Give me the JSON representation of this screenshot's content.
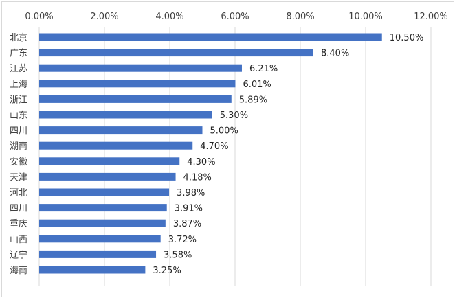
{
  "chart_data": {
    "type": "bar",
    "orientation": "horizontal",
    "title": "",
    "xlabel": "",
    "ylabel": "",
    "xlim": [
      0,
      12
    ],
    "x_ticks": [
      "0.00%",
      "2.00%",
      "4.00%",
      "6.00%",
      "8.00%",
      "10.00%",
      "12.00%"
    ],
    "x_axis_position": "top",
    "grid": true,
    "legend": "none",
    "bar_color": "#4472C4",
    "categories": [
      "北京",
      "广东",
      "江苏",
      "上海",
      "浙江",
      "山东",
      "四川",
      "湖南",
      "安徽",
      "天津",
      "河北",
      "四川",
      "重庆",
      "山西",
      "辽宁",
      "海南"
    ],
    "values": [
      10.5,
      8.4,
      6.21,
      6.01,
      5.89,
      5.3,
      5.0,
      4.7,
      4.3,
      4.18,
      3.98,
      3.91,
      3.87,
      3.72,
      3.58,
      3.25
    ],
    "data_labels": [
      "10.50%",
      "8.40%",
      "6.21%",
      "6.01%",
      "5.89%",
      "5.30%",
      "5.00%",
      "4.70%",
      "4.30%",
      "4.18%",
      "3.98%",
      "3.91%",
      "3.87%",
      "3.72%",
      "3.58%",
      "3.25%"
    ]
  }
}
